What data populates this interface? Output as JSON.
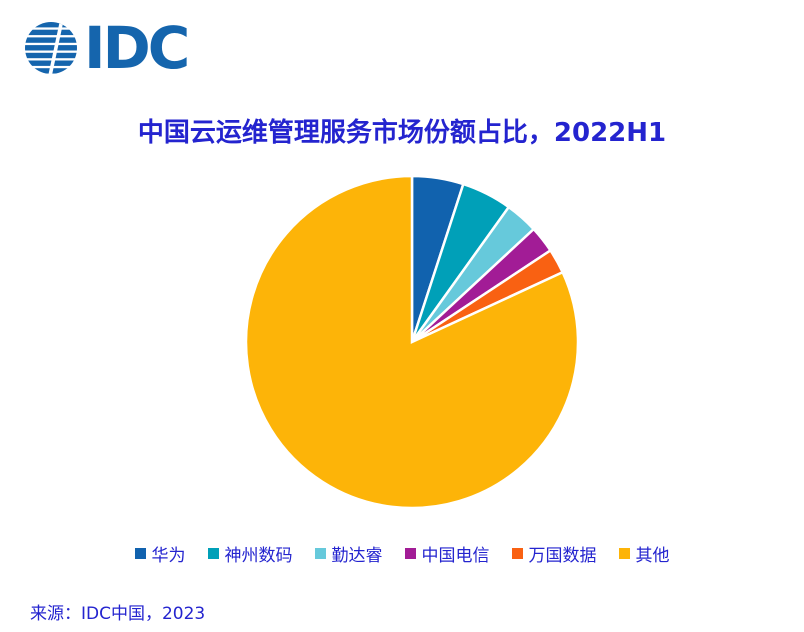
{
  "header": {
    "logo_text": "IDC",
    "logo_color": "#1565AD"
  },
  "chart_data": {
    "type": "pie",
    "title": "中国云运维管理服务市场份额占比，2022H1",
    "unit": "percent",
    "start_angle_deg": 0,
    "direction": "clockwise",
    "legend_position": "bottom",
    "segments": [
      {
        "label": "华为",
        "value": 5.0,
        "color": "#1162AE"
      },
      {
        "label": "神州数码",
        "value": 4.9,
        "color": "#00A0B8"
      },
      {
        "label": "勤达睿",
        "value": 3.2,
        "color": "#66C9DB"
      },
      {
        "label": "中国电信",
        "value": 2.6,
        "color": "#A21C96"
      },
      {
        "label": "万国数据",
        "value": 2.4,
        "color": "#F96112"
      },
      {
        "label": "其他",
        "value": 81.9,
        "color": "#FDB408"
      }
    ]
  },
  "footer": {
    "source": "来源：IDC中国，2023"
  },
  "colors": {
    "text_blue": "#2424CF",
    "background": "#FFFFFF",
    "slice_gap": "#FFFFFF"
  }
}
